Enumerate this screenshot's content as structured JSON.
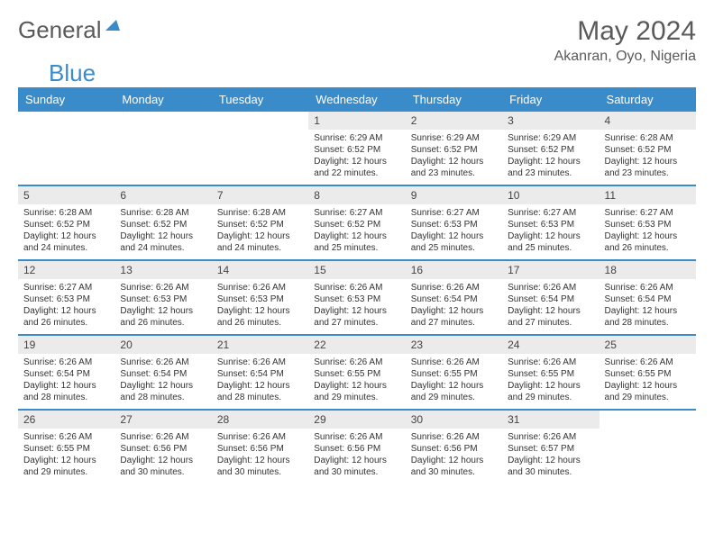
{
  "logo": {
    "text1": "General",
    "text2": "Blue"
  },
  "title": "May 2024",
  "location": "Akanran, Oyo, Nigeria",
  "colors": {
    "header_bg": "#3a8bc9",
    "header_text": "#ffffff",
    "daynum_bg": "#ebebeb",
    "row_divider": "#3a8bc9",
    "title_color": "#5a5a5a",
    "body_text": "#333333"
  },
  "typography": {
    "title_fontsize": 30,
    "location_fontsize": 16,
    "dayhead_fontsize": 13,
    "daynum_fontsize": 12,
    "data_fontsize": 10
  },
  "day_labels": [
    "Sunday",
    "Monday",
    "Tuesday",
    "Wednesday",
    "Thursday",
    "Friday",
    "Saturday"
  ],
  "field_labels": {
    "sunrise": "Sunrise:",
    "sunset": "Sunset:",
    "daylight": "Daylight:"
  },
  "weeks": [
    [
      null,
      null,
      null,
      {
        "n": "1",
        "sunrise": "6:29 AM",
        "sunset": "6:52 PM",
        "daylight": "12 hours and 22 minutes."
      },
      {
        "n": "2",
        "sunrise": "6:29 AM",
        "sunset": "6:52 PM",
        "daylight": "12 hours and 23 minutes."
      },
      {
        "n": "3",
        "sunrise": "6:29 AM",
        "sunset": "6:52 PM",
        "daylight": "12 hours and 23 minutes."
      },
      {
        "n": "4",
        "sunrise": "6:28 AM",
        "sunset": "6:52 PM",
        "daylight": "12 hours and 23 minutes."
      }
    ],
    [
      {
        "n": "5",
        "sunrise": "6:28 AM",
        "sunset": "6:52 PM",
        "daylight": "12 hours and 24 minutes."
      },
      {
        "n": "6",
        "sunrise": "6:28 AM",
        "sunset": "6:52 PM",
        "daylight": "12 hours and 24 minutes."
      },
      {
        "n": "7",
        "sunrise": "6:28 AM",
        "sunset": "6:52 PM",
        "daylight": "12 hours and 24 minutes."
      },
      {
        "n": "8",
        "sunrise": "6:27 AM",
        "sunset": "6:52 PM",
        "daylight": "12 hours and 25 minutes."
      },
      {
        "n": "9",
        "sunrise": "6:27 AM",
        "sunset": "6:53 PM",
        "daylight": "12 hours and 25 minutes."
      },
      {
        "n": "10",
        "sunrise": "6:27 AM",
        "sunset": "6:53 PM",
        "daylight": "12 hours and 25 minutes."
      },
      {
        "n": "11",
        "sunrise": "6:27 AM",
        "sunset": "6:53 PM",
        "daylight": "12 hours and 26 minutes."
      }
    ],
    [
      {
        "n": "12",
        "sunrise": "6:27 AM",
        "sunset": "6:53 PM",
        "daylight": "12 hours and 26 minutes."
      },
      {
        "n": "13",
        "sunrise": "6:26 AM",
        "sunset": "6:53 PM",
        "daylight": "12 hours and 26 minutes."
      },
      {
        "n": "14",
        "sunrise": "6:26 AM",
        "sunset": "6:53 PM",
        "daylight": "12 hours and 26 minutes."
      },
      {
        "n": "15",
        "sunrise": "6:26 AM",
        "sunset": "6:53 PM",
        "daylight": "12 hours and 27 minutes."
      },
      {
        "n": "16",
        "sunrise": "6:26 AM",
        "sunset": "6:54 PM",
        "daylight": "12 hours and 27 minutes."
      },
      {
        "n": "17",
        "sunrise": "6:26 AM",
        "sunset": "6:54 PM",
        "daylight": "12 hours and 27 minutes."
      },
      {
        "n": "18",
        "sunrise": "6:26 AM",
        "sunset": "6:54 PM",
        "daylight": "12 hours and 28 minutes."
      }
    ],
    [
      {
        "n": "19",
        "sunrise": "6:26 AM",
        "sunset": "6:54 PM",
        "daylight": "12 hours and 28 minutes."
      },
      {
        "n": "20",
        "sunrise": "6:26 AM",
        "sunset": "6:54 PM",
        "daylight": "12 hours and 28 minutes."
      },
      {
        "n": "21",
        "sunrise": "6:26 AM",
        "sunset": "6:54 PM",
        "daylight": "12 hours and 28 minutes."
      },
      {
        "n": "22",
        "sunrise": "6:26 AM",
        "sunset": "6:55 PM",
        "daylight": "12 hours and 29 minutes."
      },
      {
        "n": "23",
        "sunrise": "6:26 AM",
        "sunset": "6:55 PM",
        "daylight": "12 hours and 29 minutes."
      },
      {
        "n": "24",
        "sunrise": "6:26 AM",
        "sunset": "6:55 PM",
        "daylight": "12 hours and 29 minutes."
      },
      {
        "n": "25",
        "sunrise": "6:26 AM",
        "sunset": "6:55 PM",
        "daylight": "12 hours and 29 minutes."
      }
    ],
    [
      {
        "n": "26",
        "sunrise": "6:26 AM",
        "sunset": "6:55 PM",
        "daylight": "12 hours and 29 minutes."
      },
      {
        "n": "27",
        "sunrise": "6:26 AM",
        "sunset": "6:56 PM",
        "daylight": "12 hours and 30 minutes."
      },
      {
        "n": "28",
        "sunrise": "6:26 AM",
        "sunset": "6:56 PM",
        "daylight": "12 hours and 30 minutes."
      },
      {
        "n": "29",
        "sunrise": "6:26 AM",
        "sunset": "6:56 PM",
        "daylight": "12 hours and 30 minutes."
      },
      {
        "n": "30",
        "sunrise": "6:26 AM",
        "sunset": "6:56 PM",
        "daylight": "12 hours and 30 minutes."
      },
      {
        "n": "31",
        "sunrise": "6:26 AM",
        "sunset": "6:57 PM",
        "daylight": "12 hours and 30 minutes."
      },
      null
    ]
  ]
}
